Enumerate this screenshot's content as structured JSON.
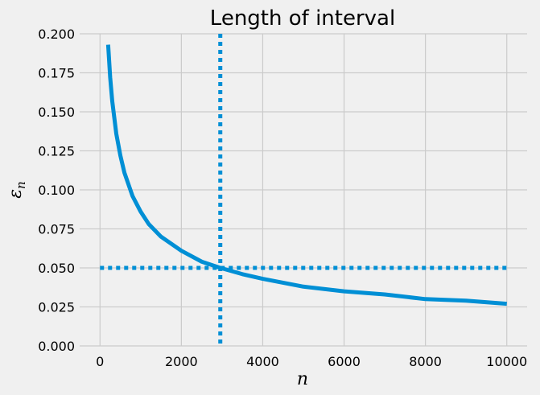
{
  "chart_data": {
    "type": "line",
    "title": "Length of interval",
    "xlabel": "n",
    "ylabel": "ε",
    "ylabel_subscript": "n",
    "xlim": [
      -500,
      10500
    ],
    "ylim": [
      0,
      0.2
    ],
    "x_ticks": [
      0,
      2000,
      4000,
      6000,
      8000,
      10000
    ],
    "x_tick_labels": [
      "0",
      "2000",
      "4000",
      "6000",
      "8000",
      "10000"
    ],
    "y_ticks": [
      0,
      0.025,
      0.05,
      0.075,
      0.1,
      0.125,
      0.15,
      0.175,
      0.2
    ],
    "y_tick_labels": [
      "0.000",
      "0.025",
      "0.050",
      "0.075",
      "0.100",
      "0.125",
      "0.150",
      "0.175",
      "0.200"
    ],
    "grid": true,
    "series": [
      {
        "style": "solid",
        "color": "#008fd5",
        "x": [
          200,
          250,
          300,
          400,
          500,
          600,
          800,
          1000,
          1200,
          1500,
          2000,
          2500,
          2957,
          3500,
          4000,
          5000,
          6000,
          7000,
          8000,
          9000,
          10000
        ],
        "y": [
          0.193,
          0.172,
          0.157,
          0.136,
          0.122,
          0.111,
          0.096,
          0.086,
          0.078,
          0.07,
          0.061,
          0.054,
          0.05,
          0.046,
          0.043,
          0.038,
          0.035,
          0.033,
          0.03,
          0.029,
          0.027
        ]
      }
    ],
    "reference_lines": [
      {
        "orientation": "horizontal",
        "value": 0.05,
        "x_range": [
          0,
          10000
        ],
        "style": "dotted",
        "color": "#008fd5"
      },
      {
        "orientation": "vertical",
        "value": 2957,
        "style": "dotted",
        "color": "#008fd5"
      }
    ],
    "colors": {
      "background": "#f0f0f0",
      "grid": "#cbcbcb",
      "line": "#008fd5"
    }
  }
}
